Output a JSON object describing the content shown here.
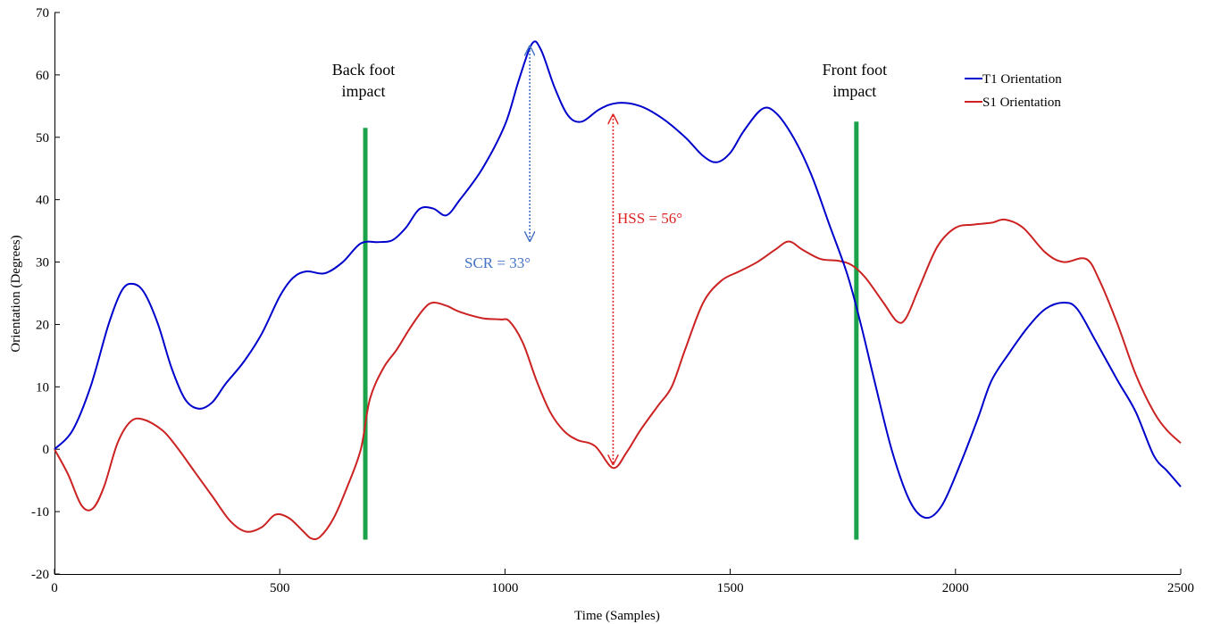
{
  "chart_data": {
    "type": "line",
    "xlabel": "Time (Samples)",
    "ylabel": "Orientation (Degrees)",
    "xlim": [
      0,
      2500
    ],
    "ylim": [
      -20,
      70
    ],
    "xticks": [
      0,
      500,
      1000,
      1500,
      2000,
      2500
    ],
    "yticks": [
      -20,
      -10,
      0,
      10,
      20,
      30,
      40,
      50,
      60,
      70
    ],
    "grid": false,
    "legend_position": "top-right",
    "series": [
      {
        "name": "T1 Orientation",
        "color": "#0000cc",
        "points": [
          [
            0,
            0
          ],
          [
            40,
            3
          ],
          [
            80,
            10
          ],
          [
            120,
            20
          ],
          [
            150,
            25.5
          ],
          [
            175,
            26.5
          ],
          [
            200,
            25
          ],
          [
            230,
            20
          ],
          [
            260,
            13
          ],
          [
            290,
            8
          ],
          [
            320,
            6.5
          ],
          [
            350,
            7.5
          ],
          [
            380,
            10.5
          ],
          [
            420,
            14
          ],
          [
            460,
            18.5
          ],
          [
            500,
            24.5
          ],
          [
            530,
            27.5
          ],
          [
            560,
            28.5
          ],
          [
            600,
            28.2
          ],
          [
            640,
            30
          ],
          [
            680,
            33
          ],
          [
            720,
            33.2
          ],
          [
            750,
            33.5
          ],
          [
            780,
            35.5
          ],
          [
            810,
            38.5
          ],
          [
            840,
            38.6
          ],
          [
            870,
            37.5
          ],
          [
            900,
            40
          ],
          [
            950,
            45
          ],
          [
            1000,
            52
          ],
          [
            1030,
            59
          ],
          [
            1060,
            65
          ],
          [
            1080,
            64
          ],
          [
            1110,
            58
          ],
          [
            1140,
            53.5
          ],
          [
            1170,
            52.5
          ],
          [
            1210,
            54.5
          ],
          [
            1250,
            55.5
          ],
          [
            1300,
            55
          ],
          [
            1350,
            53
          ],
          [
            1400,
            50
          ],
          [
            1440,
            47
          ],
          [
            1470,
            46
          ],
          [
            1500,
            47.5
          ],
          [
            1530,
            51
          ],
          [
            1570,
            54.5
          ],
          [
            1600,
            54
          ],
          [
            1640,
            50
          ],
          [
            1680,
            44
          ],
          [
            1720,
            36
          ],
          [
            1760,
            28
          ],
          [
            1790,
            20
          ],
          [
            1820,
            11
          ],
          [
            1860,
            -0.5
          ],
          [
            1900,
            -8.5
          ],
          [
            1935,
            -11
          ],
          [
            1970,
            -9
          ],
          [
            2010,
            -2.5
          ],
          [
            2050,
            5
          ],
          [
            2080,
            11
          ],
          [
            2120,
            15.5
          ],
          [
            2160,
            19.5
          ],
          [
            2200,
            22.5
          ],
          [
            2240,
            23.5
          ],
          [
            2270,
            22.5
          ],
          [
            2310,
            17.5
          ],
          [
            2360,
            11
          ],
          [
            2400,
            6
          ],
          [
            2440,
            -1
          ],
          [
            2470,
            -3.5
          ],
          [
            2500,
            -6
          ]
        ]
      },
      {
        "name": "S1 Orientation",
        "color": "#cc2222",
        "points": [
          [
            0,
            0
          ],
          [
            30,
            -4
          ],
          [
            60,
            -9
          ],
          [
            85,
            -9.5
          ],
          [
            110,
            -6
          ],
          [
            140,
            1
          ],
          [
            170,
            4.5
          ],
          [
            200,
            4.7
          ],
          [
            240,
            3
          ],
          [
            270,
            0.5
          ],
          [
            310,
            -3.5
          ],
          [
            350,
            -7.5
          ],
          [
            390,
            -11.5
          ],
          [
            425,
            -13.2
          ],
          [
            460,
            -12.5
          ],
          [
            490,
            -10.5
          ],
          [
            520,
            -11
          ],
          [
            550,
            -13
          ],
          [
            570,
            -14.3
          ],
          [
            590,
            -14
          ],
          [
            620,
            -11
          ],
          [
            650,
            -6
          ],
          [
            680,
            0
          ],
          [
            700,
            8
          ],
          [
            730,
            13
          ],
          [
            760,
            16
          ],
          [
            790,
            19.5
          ],
          [
            820,
            22.5
          ],
          [
            840,
            23.5
          ],
          [
            870,
            23
          ],
          [
            900,
            22
          ],
          [
            950,
            21
          ],
          [
            990,
            20.8
          ],
          [
            1010,
            20.5
          ],
          [
            1040,
            17
          ],
          [
            1070,
            11
          ],
          [
            1100,
            6
          ],
          [
            1130,
            3
          ],
          [
            1160,
            1.5
          ],
          [
            1200,
            0.5
          ],
          [
            1240,
            -3
          ],
          [
            1270,
            -0.5
          ],
          [
            1300,
            3
          ],
          [
            1340,
            7
          ],
          [
            1370,
            10
          ],
          [
            1400,
            16
          ],
          [
            1440,
            23.5
          ],
          [
            1480,
            27
          ],
          [
            1520,
            28.5
          ],
          [
            1560,
            30
          ],
          [
            1600,
            32
          ],
          [
            1630,
            33.3
          ],
          [
            1660,
            32
          ],
          [
            1700,
            30.5
          ],
          [
            1740,
            30.2
          ],
          [
            1770,
            29.5
          ],
          [
            1800,
            27.5
          ],
          [
            1840,
            23.5
          ],
          [
            1870,
            20.5
          ],
          [
            1890,
            21
          ],
          [
            1920,
            26
          ],
          [
            1960,
            32.5
          ],
          [
            2000,
            35.5
          ],
          [
            2040,
            36
          ],
          [
            2080,
            36.3
          ],
          [
            2110,
            36.8
          ],
          [
            2150,
            35.5
          ],
          [
            2200,
            31.5
          ],
          [
            2240,
            30
          ],
          [
            2290,
            30.5
          ],
          [
            2320,
            27
          ],
          [
            2360,
            20
          ],
          [
            2400,
            12
          ],
          [
            2440,
            6
          ],
          [
            2470,
            3
          ],
          [
            2500,
            1
          ]
        ]
      }
    ],
    "events": [
      {
        "label_line1": "Back foot",
        "label_line2": "impact",
        "x": 690,
        "y_range": [
          -14.5,
          51.5
        ],
        "color": "#1aa34a"
      },
      {
        "label_line1": "Front foot",
        "label_line2": "impact",
        "x": 1780,
        "y_range": [
          -14.5,
          52.5
        ],
        "color": "#1aa34a"
      }
    ],
    "annotations": [
      {
        "text": "SCR = 33°",
        "color": "#4472c4",
        "x": 1055,
        "y_from": 65,
        "y_to": 33
      },
      {
        "text": "HSS = 56°",
        "color": "#dd2222",
        "x": 1240,
        "y_from": 54,
        "y_to": -2.8
      }
    ]
  }
}
